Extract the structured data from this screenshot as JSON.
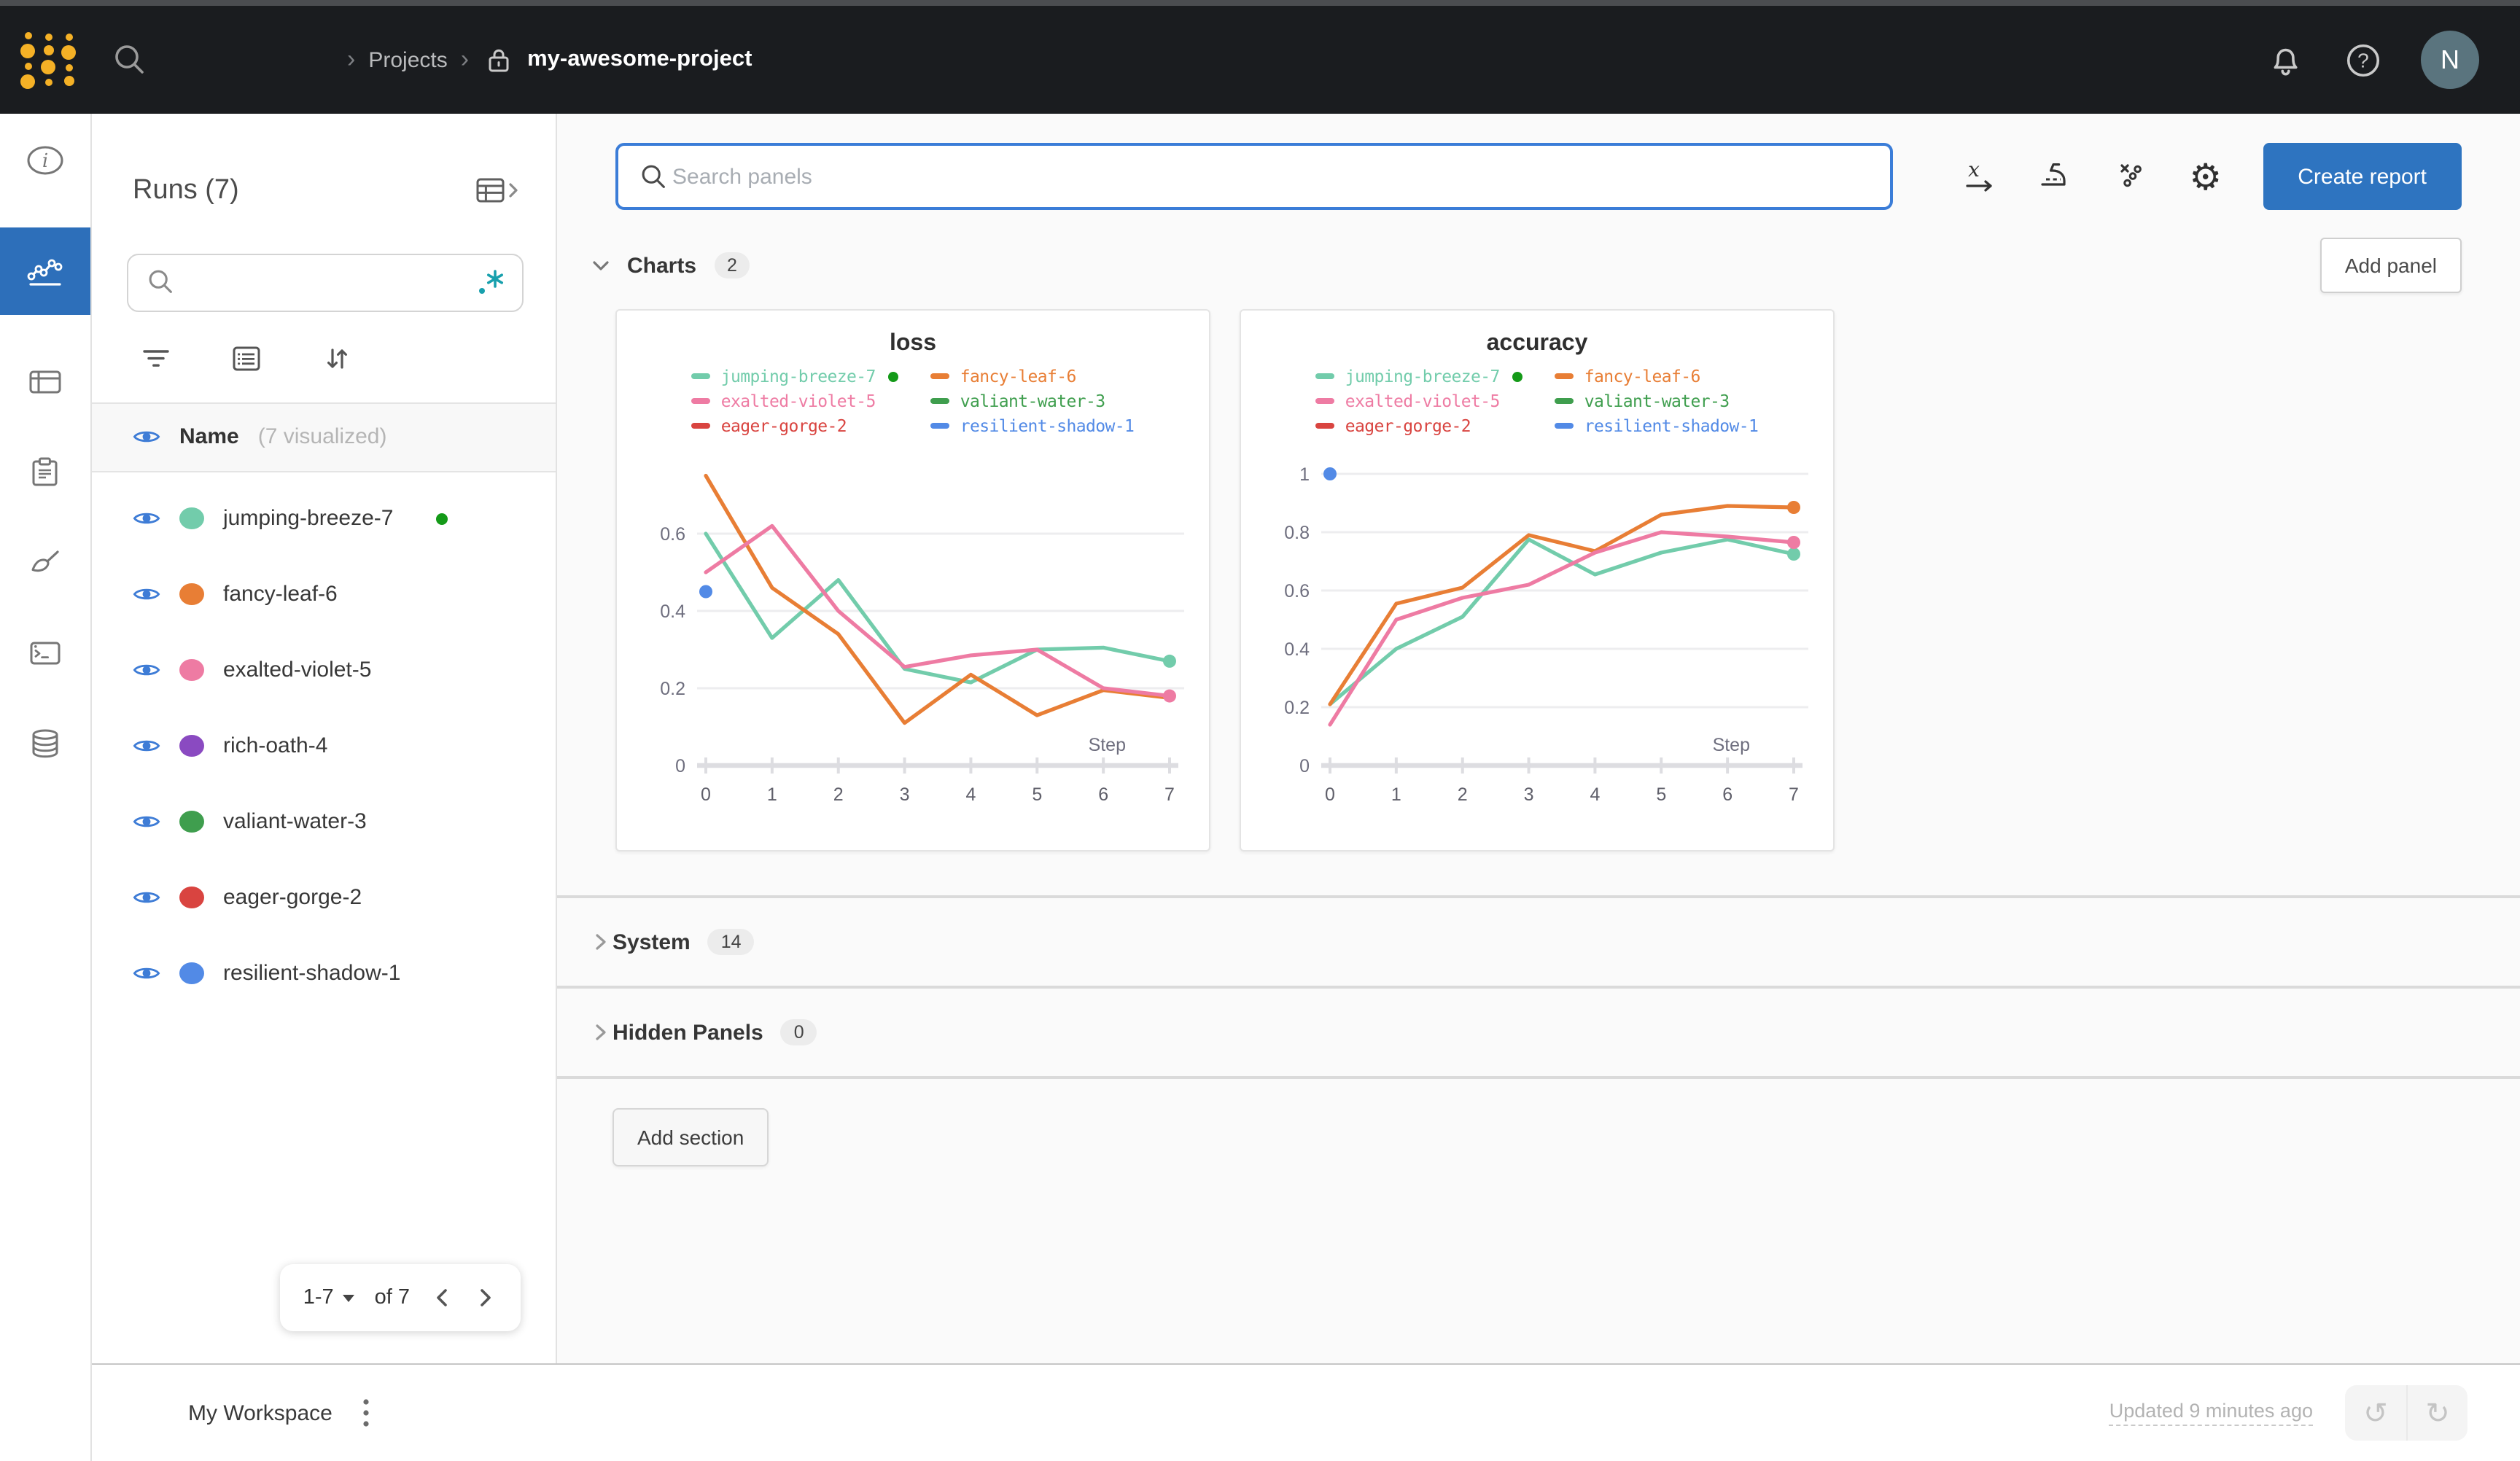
{
  "navbar": {
    "breadcrumb_projects": "Projects",
    "project_name": "my-awesome-project",
    "avatar_initial": "N"
  },
  "runs_panel": {
    "title": "Runs (7)",
    "search_value": "",
    "header_name": "Name",
    "header_note": "(7 visualized)",
    "runs": [
      {
        "name": "jumping-breeze-7",
        "color": "#72ccab",
        "running": true
      },
      {
        "name": "fancy-leaf-6",
        "color": "#e87e35",
        "running": false
      },
      {
        "name": "exalted-violet-5",
        "color": "#ee7ba3",
        "running": false
      },
      {
        "name": "rich-oath-4",
        "color": "#8a4ac1",
        "running": false
      },
      {
        "name": "valiant-water-3",
        "color": "#3f9e4e",
        "running": false
      },
      {
        "name": "eager-gorge-2",
        "color": "#d94440",
        "running": false
      },
      {
        "name": "resilient-shadow-1",
        "color": "#528ae6",
        "running": false
      }
    ],
    "pagination": {
      "range": "1-7",
      "of": "of 7"
    }
  },
  "main": {
    "panel_search_placeholder": "Search panels",
    "create_report_label": "Create report",
    "add_panel_label": "Add panel",
    "add_section_label": "Add section",
    "sections": {
      "charts": {
        "label": "Charts",
        "count": "2"
      },
      "system": {
        "label": "System",
        "count": "14"
      },
      "hidden": {
        "label": "Hidden Panels",
        "count": "0"
      }
    }
  },
  "footer": {
    "workspace": "My Workspace",
    "updated": "Updated 9 minutes ago"
  },
  "colors": {
    "accent_blue": "#2e74c0",
    "rail_active_blue": "#2d6fba",
    "focus_border": "#3b7dd8",
    "running_green": "#149a18",
    "regex_teal": "#18a0ad",
    "eye_blue": "#3e7cd6"
  },
  "chart_data": [
    {
      "type": "line",
      "title": "loss",
      "xlabel": "Step",
      "x": [
        0,
        1,
        2,
        3,
        4,
        5,
        6,
        7
      ],
      "ylim": [
        0,
        0.8
      ],
      "yticks": [
        0,
        0.2,
        0.4,
        0.6
      ],
      "grid": true,
      "legend_position": "top",
      "series": [
        {
          "name": "jumping-breeze-7",
          "color": "#72ccab",
          "values": [
            0.6,
            0.33,
            0.48,
            0.25,
            0.215,
            0.3,
            0.305,
            0.27
          ],
          "end_dot": true
        },
        {
          "name": "fancy-leaf-6",
          "color": "#e87e35",
          "values": [
            0.75,
            0.46,
            0.34,
            0.11,
            0.235,
            0.13,
            0.195,
            0.175
          ],
          "end_dot": false
        },
        {
          "name": "exalted-violet-5",
          "color": "#ee7ba3",
          "values": [
            0.5,
            0.62,
            0.4,
            0.255,
            0.285,
            0.3,
            0.2,
            0.18
          ],
          "end_dot": true
        }
      ],
      "points": [
        {
          "name": "resilient-shadow-1",
          "color": "#528ae6",
          "x": 0,
          "y": 0.45
        }
      ],
      "legend": [
        {
          "name": "jumping-breeze-7",
          "color": "#72ccab",
          "running": true
        },
        {
          "name": "fancy-leaf-6",
          "color": "#e87e35",
          "running": false
        },
        {
          "name": "exalted-violet-5",
          "color": "#ee7ba3",
          "running": false
        },
        {
          "name": "valiant-water-3",
          "color": "#3f9e4e",
          "running": false
        },
        {
          "name": "eager-gorge-2",
          "color": "#d94440",
          "running": false
        },
        {
          "name": "resilient-shadow-1",
          "color": "#528ae6",
          "running": false
        }
      ]
    },
    {
      "type": "line",
      "title": "accuracy",
      "xlabel": "Step",
      "x": [
        0,
        1,
        2,
        3,
        4,
        5,
        6,
        7
      ],
      "ylim": [
        0,
        1.06
      ],
      "yticks": [
        0,
        0.2,
        0.4,
        0.6,
        0.8,
        1
      ],
      "grid": true,
      "legend_position": "top",
      "series": [
        {
          "name": "jumping-breeze-7",
          "color": "#72ccab",
          "values": [
            0.21,
            0.4,
            0.51,
            0.775,
            0.655,
            0.73,
            0.775,
            0.725
          ],
          "end_dot": true
        },
        {
          "name": "fancy-leaf-6",
          "color": "#e87e35",
          "values": [
            0.21,
            0.555,
            0.61,
            0.79,
            0.735,
            0.86,
            0.89,
            0.885
          ],
          "end_dot": true
        },
        {
          "name": "exalted-violet-5",
          "color": "#ee7ba3",
          "values": [
            0.14,
            0.5,
            0.575,
            0.62,
            0.73,
            0.8,
            0.785,
            0.765
          ],
          "end_dot": true
        }
      ],
      "points": [
        {
          "name": "resilient-shadow-1",
          "color": "#528ae6",
          "x": 0,
          "y": 1.0
        }
      ],
      "legend": [
        {
          "name": "jumping-breeze-7",
          "color": "#72ccab",
          "running": true
        },
        {
          "name": "fancy-leaf-6",
          "color": "#e87e35",
          "running": false
        },
        {
          "name": "exalted-violet-5",
          "color": "#ee7ba3",
          "running": false
        },
        {
          "name": "valiant-water-3",
          "color": "#3f9e4e",
          "running": false
        },
        {
          "name": "eager-gorge-2",
          "color": "#d94440",
          "running": false
        },
        {
          "name": "resilient-shadow-1",
          "color": "#528ae6",
          "running": false
        }
      ]
    }
  ]
}
